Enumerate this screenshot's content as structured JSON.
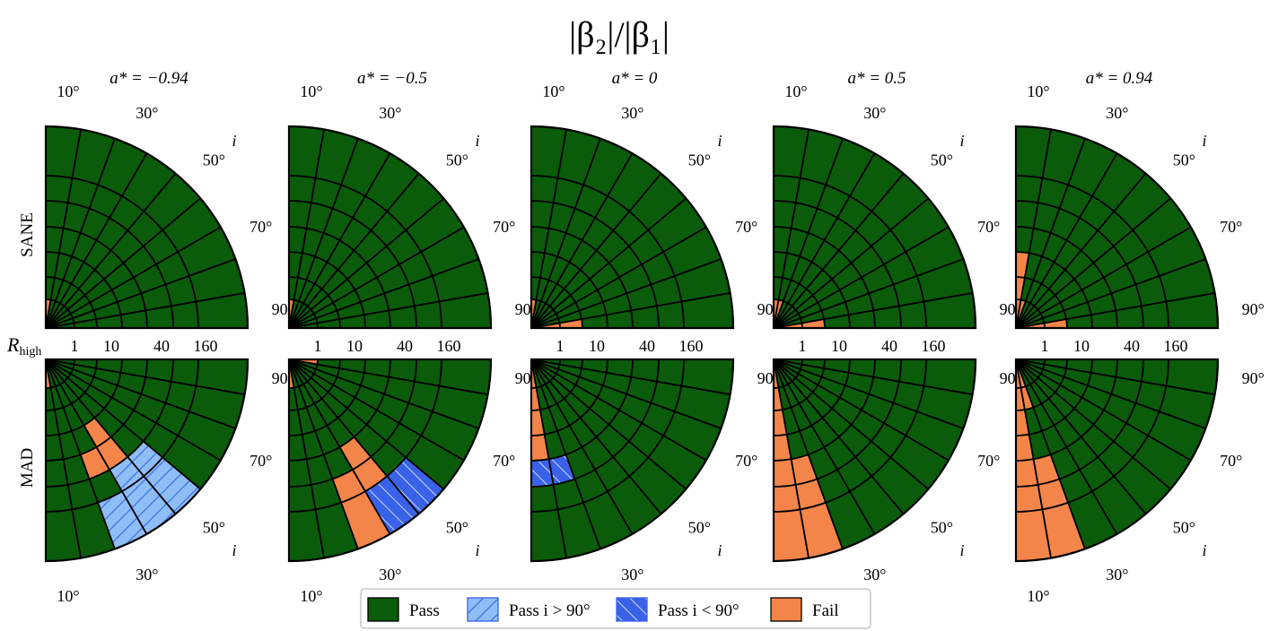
{
  "chart_data": {
    "type": "polar-quadrant-grid",
    "title": "|β₂|/|β₁|",
    "columns": [
      {
        "a_star": -0.94,
        "label": "a* = −0.94"
      },
      {
        "a_star": -0.5,
        "label": "a* = −0.5"
      },
      {
        "a_star": 0,
        "label": "a* = 0"
      },
      {
        "a_star": 0.5,
        "label": "a* = 0.5"
      },
      {
        "a_star": 0.94,
        "label": "a* = 0.94"
      }
    ],
    "rows": [
      {
        "model": "SANE",
        "label": "SANE"
      },
      {
        "model": "MAD",
        "label": "MAD"
      }
    ],
    "r_axis": {
      "label": "R_high",
      "label_main": "R",
      "label_sub": "high",
      "tick_labels": [
        "1",
        "10",
        "40",
        "160"
      ],
      "values": [
        1,
        5,
        10,
        20,
        40,
        80,
        160
      ]
    },
    "angle_axis": {
      "label": "i",
      "tick_labels": [
        "10°",
        "30°",
        "50°",
        "70°",
        "90°"
      ],
      "values": [
        10,
        20,
        30,
        40,
        50,
        60,
        70,
        80,
        90
      ]
    },
    "legend": [
      {
        "key": "pass",
        "label": "Pass",
        "color": "#0a5c0a"
      },
      {
        "key": "pass_gt90",
        "label": "Pass i > 90°",
        "color": "#8fbef7"
      },
      {
        "key": "pass_lt90",
        "label": "Pass i < 90°",
        "color": "#3a62e8"
      },
      {
        "key": "fail",
        "label": "Fail",
        "color": "#f4854a"
      }
    ],
    "default_outcome": "pass",
    "cells": {
      "SANE": [
        [
          {
            "r": 1,
            "i": 10,
            "outcome": "fail"
          }
        ],
        [
          {
            "r": 1,
            "i": 10,
            "outcome": "fail"
          }
        ],
        [
          {
            "r": 1,
            "i": 10,
            "outcome": "fail"
          },
          {
            "r": 1,
            "i": 90,
            "outcome": "fail"
          },
          {
            "r": 5,
            "i": 90,
            "outcome": "fail"
          }
        ],
        [
          {
            "r": 1,
            "i": 10,
            "outcome": "fail"
          },
          {
            "r": 1,
            "i": 20,
            "outcome": "fail"
          },
          {
            "r": 1,
            "i": 90,
            "outcome": "fail"
          },
          {
            "r": 5,
            "i": 90,
            "outcome": "fail"
          }
        ],
        [
          {
            "r": 1,
            "i": 10,
            "outcome": "fail"
          },
          {
            "r": 1,
            "i": 20,
            "outcome": "fail"
          },
          {
            "r": 1,
            "i": 90,
            "outcome": "fail"
          },
          {
            "r": 5,
            "i": 90,
            "outcome": "fail"
          },
          {
            "r": 5,
            "i": 10,
            "outcome": "fail"
          },
          {
            "r": 10,
            "i": 10,
            "outcome": "fail"
          }
        ]
      ],
      "MAD": [
        [
          {
            "r": 1,
            "i": 10,
            "outcome": "fail"
          },
          {
            "r": 20,
            "i": 40,
            "outcome": "fail"
          },
          {
            "r": 40,
            "i": 40,
            "outcome": "fail"
          },
          {
            "r": 40,
            "i": 30,
            "outcome": "fail"
          },
          {
            "r": 80,
            "i": 50,
            "outcome": "pass_gt90"
          },
          {
            "r": 80,
            "i": 40,
            "outcome": "pass_gt90"
          },
          {
            "r": 160,
            "i": 40,
            "outcome": "pass_gt90"
          },
          {
            "r": 160,
            "i": 30,
            "outcome": "pass_gt90"
          },
          {
            "r": 160,
            "i": 50,
            "outcome": "pass_gt90"
          }
        ],
        [
          {
            "r": 1,
            "i": 10,
            "outcome": "fail"
          },
          {
            "r": 1,
            "i": 90,
            "outcome": "fail"
          },
          {
            "r": 40,
            "i": 40,
            "outcome": "fail"
          },
          {
            "r": 80,
            "i": 40,
            "outcome": "fail"
          },
          {
            "r": 80,
            "i": 30,
            "outcome": "fail"
          },
          {
            "r": 160,
            "i": 30,
            "outcome": "fail"
          },
          {
            "r": 160,
            "i": 40,
            "outcome": "pass_lt90"
          },
          {
            "r": 160,
            "i": 50,
            "outcome": "pass_lt90"
          }
        ],
        [
          {
            "r": 1,
            "i": 10,
            "outcome": "fail"
          },
          {
            "r": 5,
            "i": 10,
            "outcome": "fail"
          },
          {
            "r": 10,
            "i": 10,
            "outcome": "fail"
          },
          {
            "r": 20,
            "i": 10,
            "outcome": "fail"
          },
          {
            "r": 40,
            "i": 10,
            "outcome": "pass_lt90"
          },
          {
            "r": 40,
            "i": 20,
            "outcome": "pass_lt90"
          }
        ],
        [
          {
            "r": 1,
            "i": 10,
            "outcome": "fail"
          },
          {
            "r": 5,
            "i": 10,
            "outcome": "fail"
          },
          {
            "r": 10,
            "i": 10,
            "outcome": "fail"
          },
          {
            "r": 20,
            "i": 10,
            "outcome": "fail"
          },
          {
            "r": 40,
            "i": 10,
            "outcome": "fail"
          },
          {
            "r": 80,
            "i": 10,
            "outcome": "fail"
          },
          {
            "r": 160,
            "i": 10,
            "outcome": "fail"
          },
          {
            "r": 40,
            "i": 20,
            "outcome": "fail"
          },
          {
            "r": 80,
            "i": 20,
            "outcome": "fail"
          },
          {
            "r": 160,
            "i": 20,
            "outcome": "fail"
          }
        ],
        [
          {
            "r": 1,
            "i": 10,
            "outcome": "fail"
          },
          {
            "r": 1,
            "i": 20,
            "outcome": "fail"
          },
          {
            "r": 5,
            "i": 20,
            "outcome": "fail"
          },
          {
            "r": 5,
            "i": 10,
            "outcome": "fail"
          },
          {
            "r": 10,
            "i": 10,
            "outcome": "fail"
          },
          {
            "r": 20,
            "i": 10,
            "outcome": "fail"
          },
          {
            "r": 40,
            "i": 10,
            "outcome": "fail"
          },
          {
            "r": 80,
            "i": 10,
            "outcome": "fail"
          },
          {
            "r": 160,
            "i": 10,
            "outcome": "fail"
          },
          {
            "r": 40,
            "i": 20,
            "outcome": "fail"
          },
          {
            "r": 80,
            "i": 20,
            "outcome": "fail"
          },
          {
            "r": 160,
            "i": 20,
            "outcome": "fail"
          }
        ]
      ]
    }
  }
}
